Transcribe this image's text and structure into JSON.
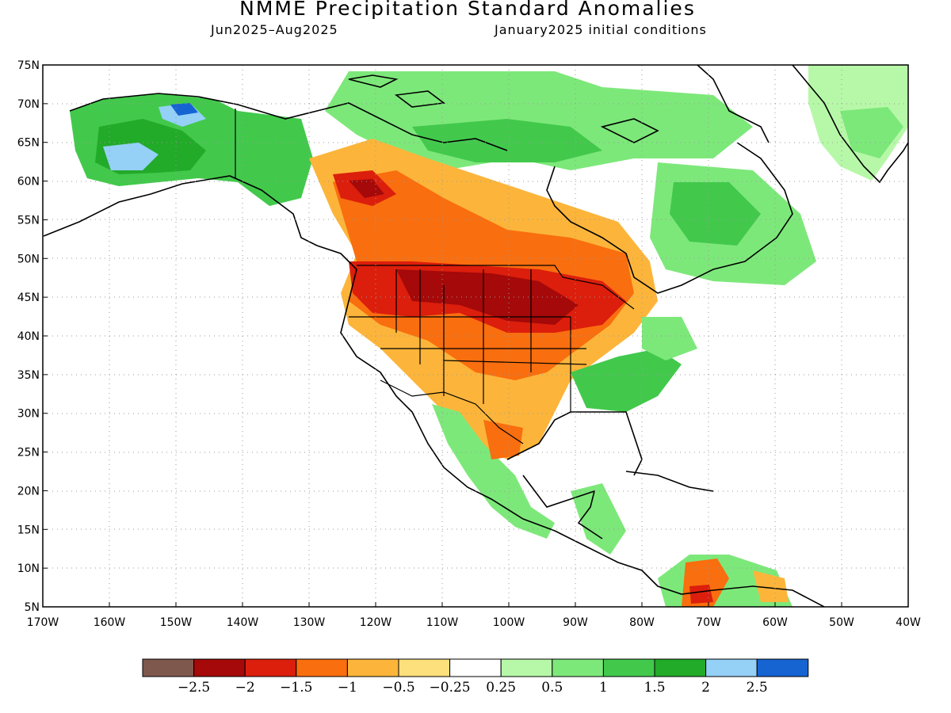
{
  "header": {
    "title": "NMME Precipitation Standard Anomalies",
    "period": "Jun2025–Aug2025",
    "init": "January2025 initial conditions"
  },
  "axes": {
    "lat_labels": [
      "75N",
      "70N",
      "65N",
      "60N",
      "55N",
      "50N",
      "45N",
      "40N",
      "35N",
      "30N",
      "25N",
      "20N",
      "15N",
      "10N",
      "5N"
    ],
    "lon_labels": [
      "170W",
      "160W",
      "150W",
      "140W",
      "130W",
      "120W",
      "110W",
      "100W",
      "90W",
      "80W",
      "70W",
      "60W",
      "50W",
      "40W"
    ]
  },
  "map": {
    "lat_range": [
      5,
      75
    ],
    "lon_range": [
      -170,
      -40
    ],
    "grid": "dotted every 5 degrees"
  },
  "colorbar": {
    "colors": [
      "#7f584d",
      "#a50909",
      "#dc1e0c",
      "#f96e0f",
      "#fcb53a",
      "#fde07b",
      "#ffffff",
      "#b7f8a8",
      "#7de87a",
      "#42c94c",
      "#22aa29",
      "#95d0f7",
      "#1663d2"
    ],
    "labels": [
      "-2.5",
      "-2",
      "-1.5",
      "-1",
      "-0.5",
      "-0.25",
      "0.25",
      "0.5",
      "1",
      "1.5",
      "2",
      "2.5"
    ]
  }
}
